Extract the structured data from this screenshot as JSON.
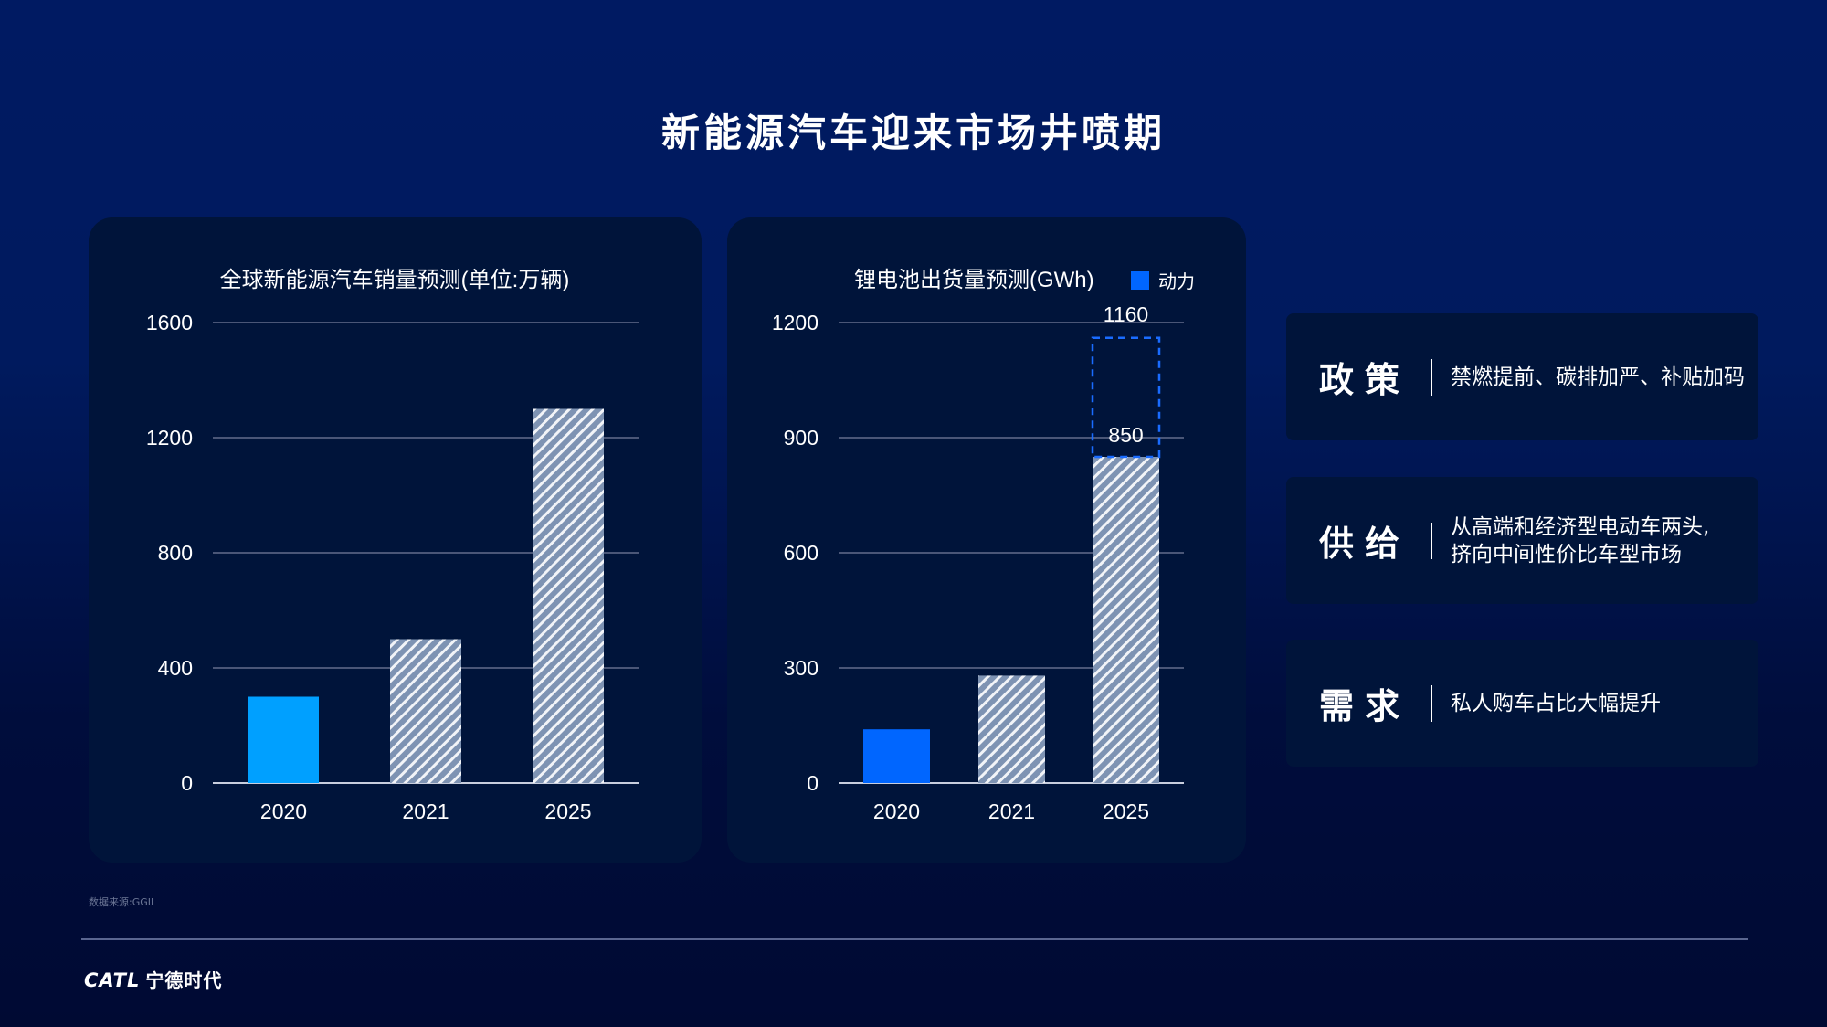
{
  "title": "新能源汽车迎来市场井喷期",
  "chart_data": [
    {
      "type": "bar",
      "title": "全球新能源汽车销量预测(单位:万辆)",
      "categories": [
        "2020",
        "2021",
        "2025"
      ],
      "values": [
        300,
        500,
        1300
      ],
      "ylim": [
        0,
        1600
      ],
      "yticks": [
        "0",
        "400",
        "800",
        "1200",
        "1600"
      ],
      "grid": true,
      "colors": {
        "solid": "#00a0ff",
        "hatched": "#7e93b3"
      },
      "hatched": [
        false,
        true,
        true
      ]
    },
    {
      "type": "bar",
      "title": "锂电池出货量预测(GWh)",
      "legend": [
        {
          "name": "动力",
          "color": "#0066ff"
        }
      ],
      "legend_placement": "top-right",
      "categories": [
        "2020",
        "2021",
        "2025"
      ],
      "values": [
        140,
        280,
        850
      ],
      "ylim": [
        0,
        1200
      ],
      "yticks": [
        "0",
        "300",
        "600",
        "900",
        "1200"
      ],
      "grid": true,
      "colors": {
        "solid": "#0066ff",
        "hatched": "#7e93b3",
        "dashed": "#1a6cff"
      },
      "hatched": [
        false,
        true,
        true
      ],
      "data_labels": [
        "",
        "",
        "850"
      ],
      "upper_estimate": {
        "category": "2025",
        "value": 1160,
        "label": "1160"
      }
    }
  ],
  "cards": [
    {
      "head": "政策",
      "desc": "禁燃提前、碳排加严、补贴加码"
    },
    {
      "head": "供给",
      "desc": "从高端和经济型电动车两头,\n挤向中间性价比车型市场"
    },
    {
      "head": "需求",
      "desc": "私人购车占比大幅提升"
    }
  ],
  "source": "数据来源:GGII",
  "logo": {
    "en": "CATL",
    "cn": "宁德时代"
  }
}
